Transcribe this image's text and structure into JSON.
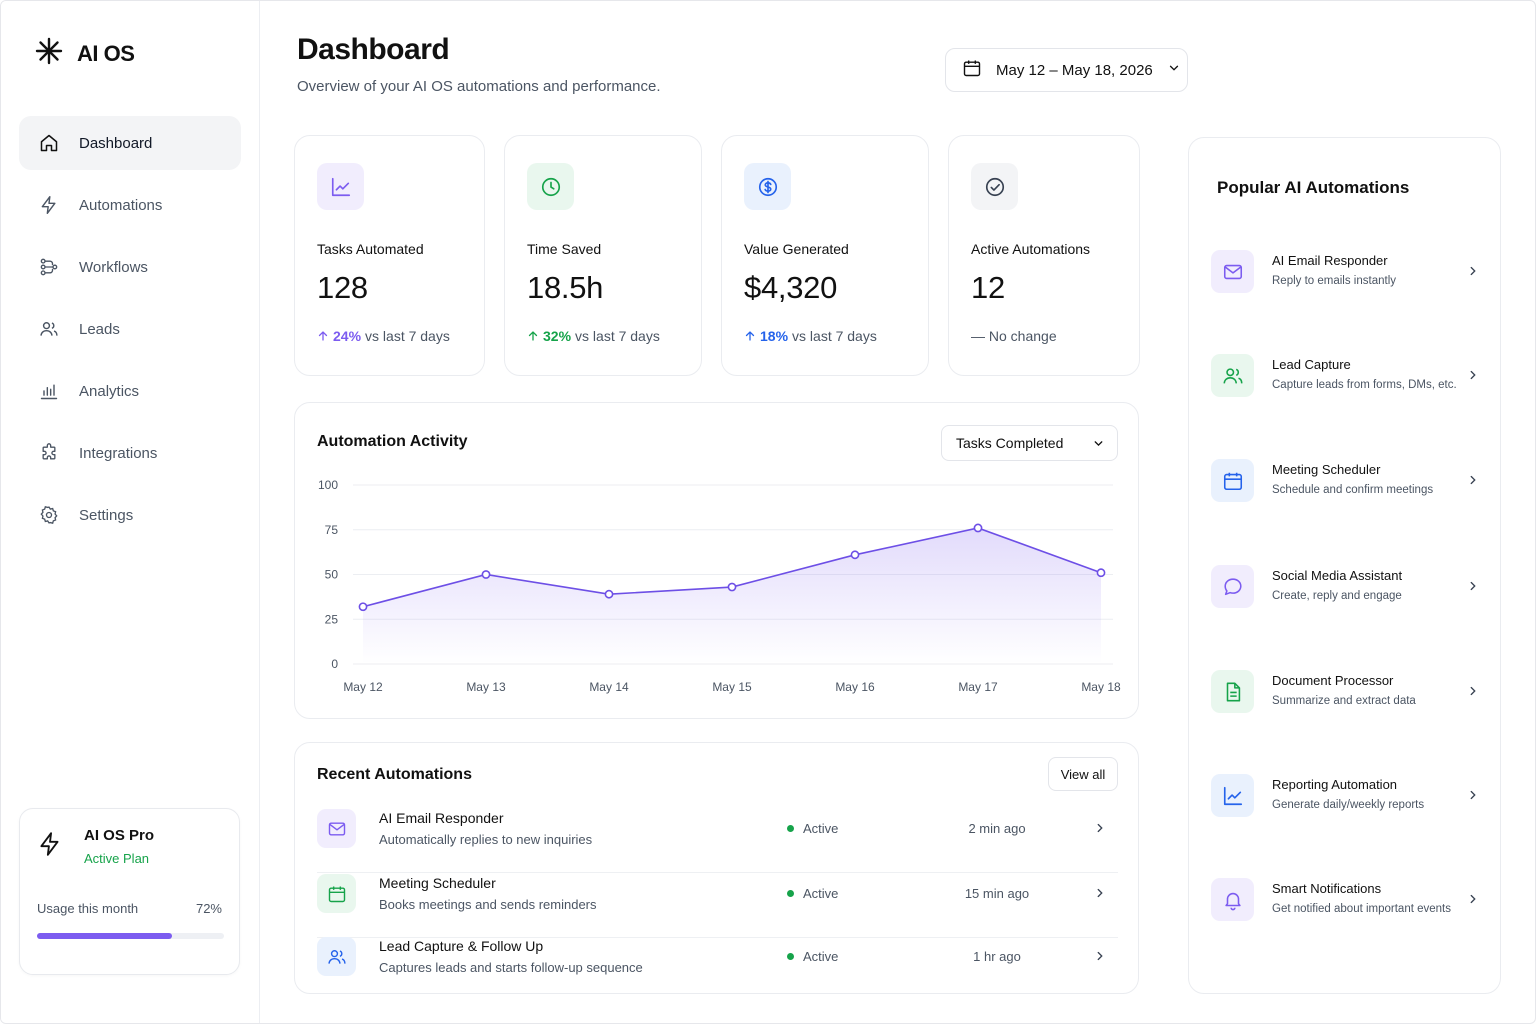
{
  "brand": {
    "name": "AI OS"
  },
  "sidebar": {
    "items": [
      {
        "label": "Dashboard",
        "icon": "home-icon",
        "active": true
      },
      {
        "label": "Automations",
        "icon": "bolt-icon"
      },
      {
        "label": "Workflows",
        "icon": "workflow-icon"
      },
      {
        "label": "Leads",
        "icon": "users-icon"
      },
      {
        "label": "Analytics",
        "icon": "analytics-icon"
      },
      {
        "label": "Integrations",
        "icon": "puzzle-icon"
      },
      {
        "label": "Settings",
        "icon": "gear-icon"
      }
    ],
    "plan": {
      "name": "AI OS Pro",
      "status": "Active Plan",
      "usage_label": "Usage this month",
      "usage_pct_text": "72%",
      "usage_fraction": 0.72
    }
  },
  "header": {
    "title": "Dashboard",
    "subtitle": "Overview of your AI OS automations and performance.",
    "date_range": "May 12 – May 18, 2026"
  },
  "stats": [
    {
      "label": "Tasks Automated",
      "value": "128",
      "change_pct": "24%",
      "change_text": "vs last 7 days",
      "icon": "trend-chart-icon",
      "accent": "#7c5cf0",
      "bg": "#f1edfd"
    },
    {
      "label": "Time Saved",
      "value": "18.5h",
      "change_pct": "32%",
      "change_text": "vs last 7 days",
      "icon": "clock-icon",
      "accent": "#16a34a",
      "bg": "#e9f7ee"
    },
    {
      "label": "Value Generated",
      "value": "$4,320",
      "change_pct": "18%",
      "change_text": "vs last 7 days",
      "icon": "dollar-icon",
      "accent": "#2563eb",
      "bg": "#e9f1fd"
    },
    {
      "label": "Active Automations",
      "value": "12",
      "change_pct": "",
      "change_text": "— No change",
      "icon": "check-circle-icon",
      "accent": "#374151",
      "bg": "#f3f4f6"
    }
  ],
  "chart_section": {
    "title": "Automation Activity",
    "metric_select": "Tasks Completed"
  },
  "chart_data": {
    "type": "area",
    "categories": [
      "May 12",
      "May 13",
      "May 14",
      "May 15",
      "May 16",
      "May 17",
      "May 18"
    ],
    "series": [
      {
        "values": [
          32,
          50,
          39,
          43,
          61,
          76,
          51
        ]
      }
    ],
    "yticks": [
      "0",
      "25",
      "50",
      "75",
      "100"
    ],
    "ylim": [
      0,
      100
    ],
    "grid": true,
    "color": "#6d4fe6"
  },
  "recent": {
    "title": "Recent Automations",
    "view_all": "View all",
    "rows": [
      {
        "name": "AI Email Responder",
        "desc": "Automatically replies to new inquiries",
        "status": "Active",
        "time": "2 min ago",
        "icon": "mail-icon",
        "accent": "#7c5cf0",
        "bg": "#f1edfd"
      },
      {
        "name": "Meeting Scheduler",
        "desc": "Books meetings and sends reminders",
        "status": "Active",
        "time": "15 min ago",
        "icon": "calendar-icon",
        "accent": "#16a34a",
        "bg": "#e9f7ee"
      },
      {
        "name": "Lead Capture & Follow Up",
        "desc": "Captures leads and starts follow-up sequence",
        "status": "Active",
        "time": "1 hr ago",
        "icon": "users-icon",
        "accent": "#2563eb",
        "bg": "#e9f1fd"
      }
    ]
  },
  "popular": {
    "title": "Popular AI Automations",
    "items": [
      {
        "name": "AI Email Responder",
        "desc": "Reply to emails instantly",
        "icon": "mail-icon",
        "accent": "#7c5cf0",
        "bg": "#f1edfd"
      },
      {
        "name": "Lead Capture",
        "desc": "Capture leads from forms, DMs, etc.",
        "icon": "users-icon",
        "accent": "#16a34a",
        "bg": "#e9f7ee"
      },
      {
        "name": "Meeting Scheduler",
        "desc": "Schedule and confirm meetings",
        "icon": "calendar-icon",
        "accent": "#2563eb",
        "bg": "#e9f1fd"
      },
      {
        "name": "Social Media Assistant",
        "desc": "Create, reply and engage",
        "icon": "chat-icon",
        "accent": "#7c5cf0",
        "bg": "#f1edfd"
      },
      {
        "name": "Document Processor",
        "desc": "Summarize and extract data",
        "icon": "document-icon",
        "accent": "#16a34a",
        "bg": "#e9f7ee"
      },
      {
        "name": "Reporting Automation",
        "desc": "Generate daily/weekly reports",
        "icon": "trend-chart-icon",
        "accent": "#2563eb",
        "bg": "#e9f1fd"
      },
      {
        "name": "Smart Notifications",
        "desc": "Get notified about important events",
        "icon": "bell-icon",
        "accent": "#7c5cf0",
        "bg": "#f1edfd"
      }
    ]
  }
}
